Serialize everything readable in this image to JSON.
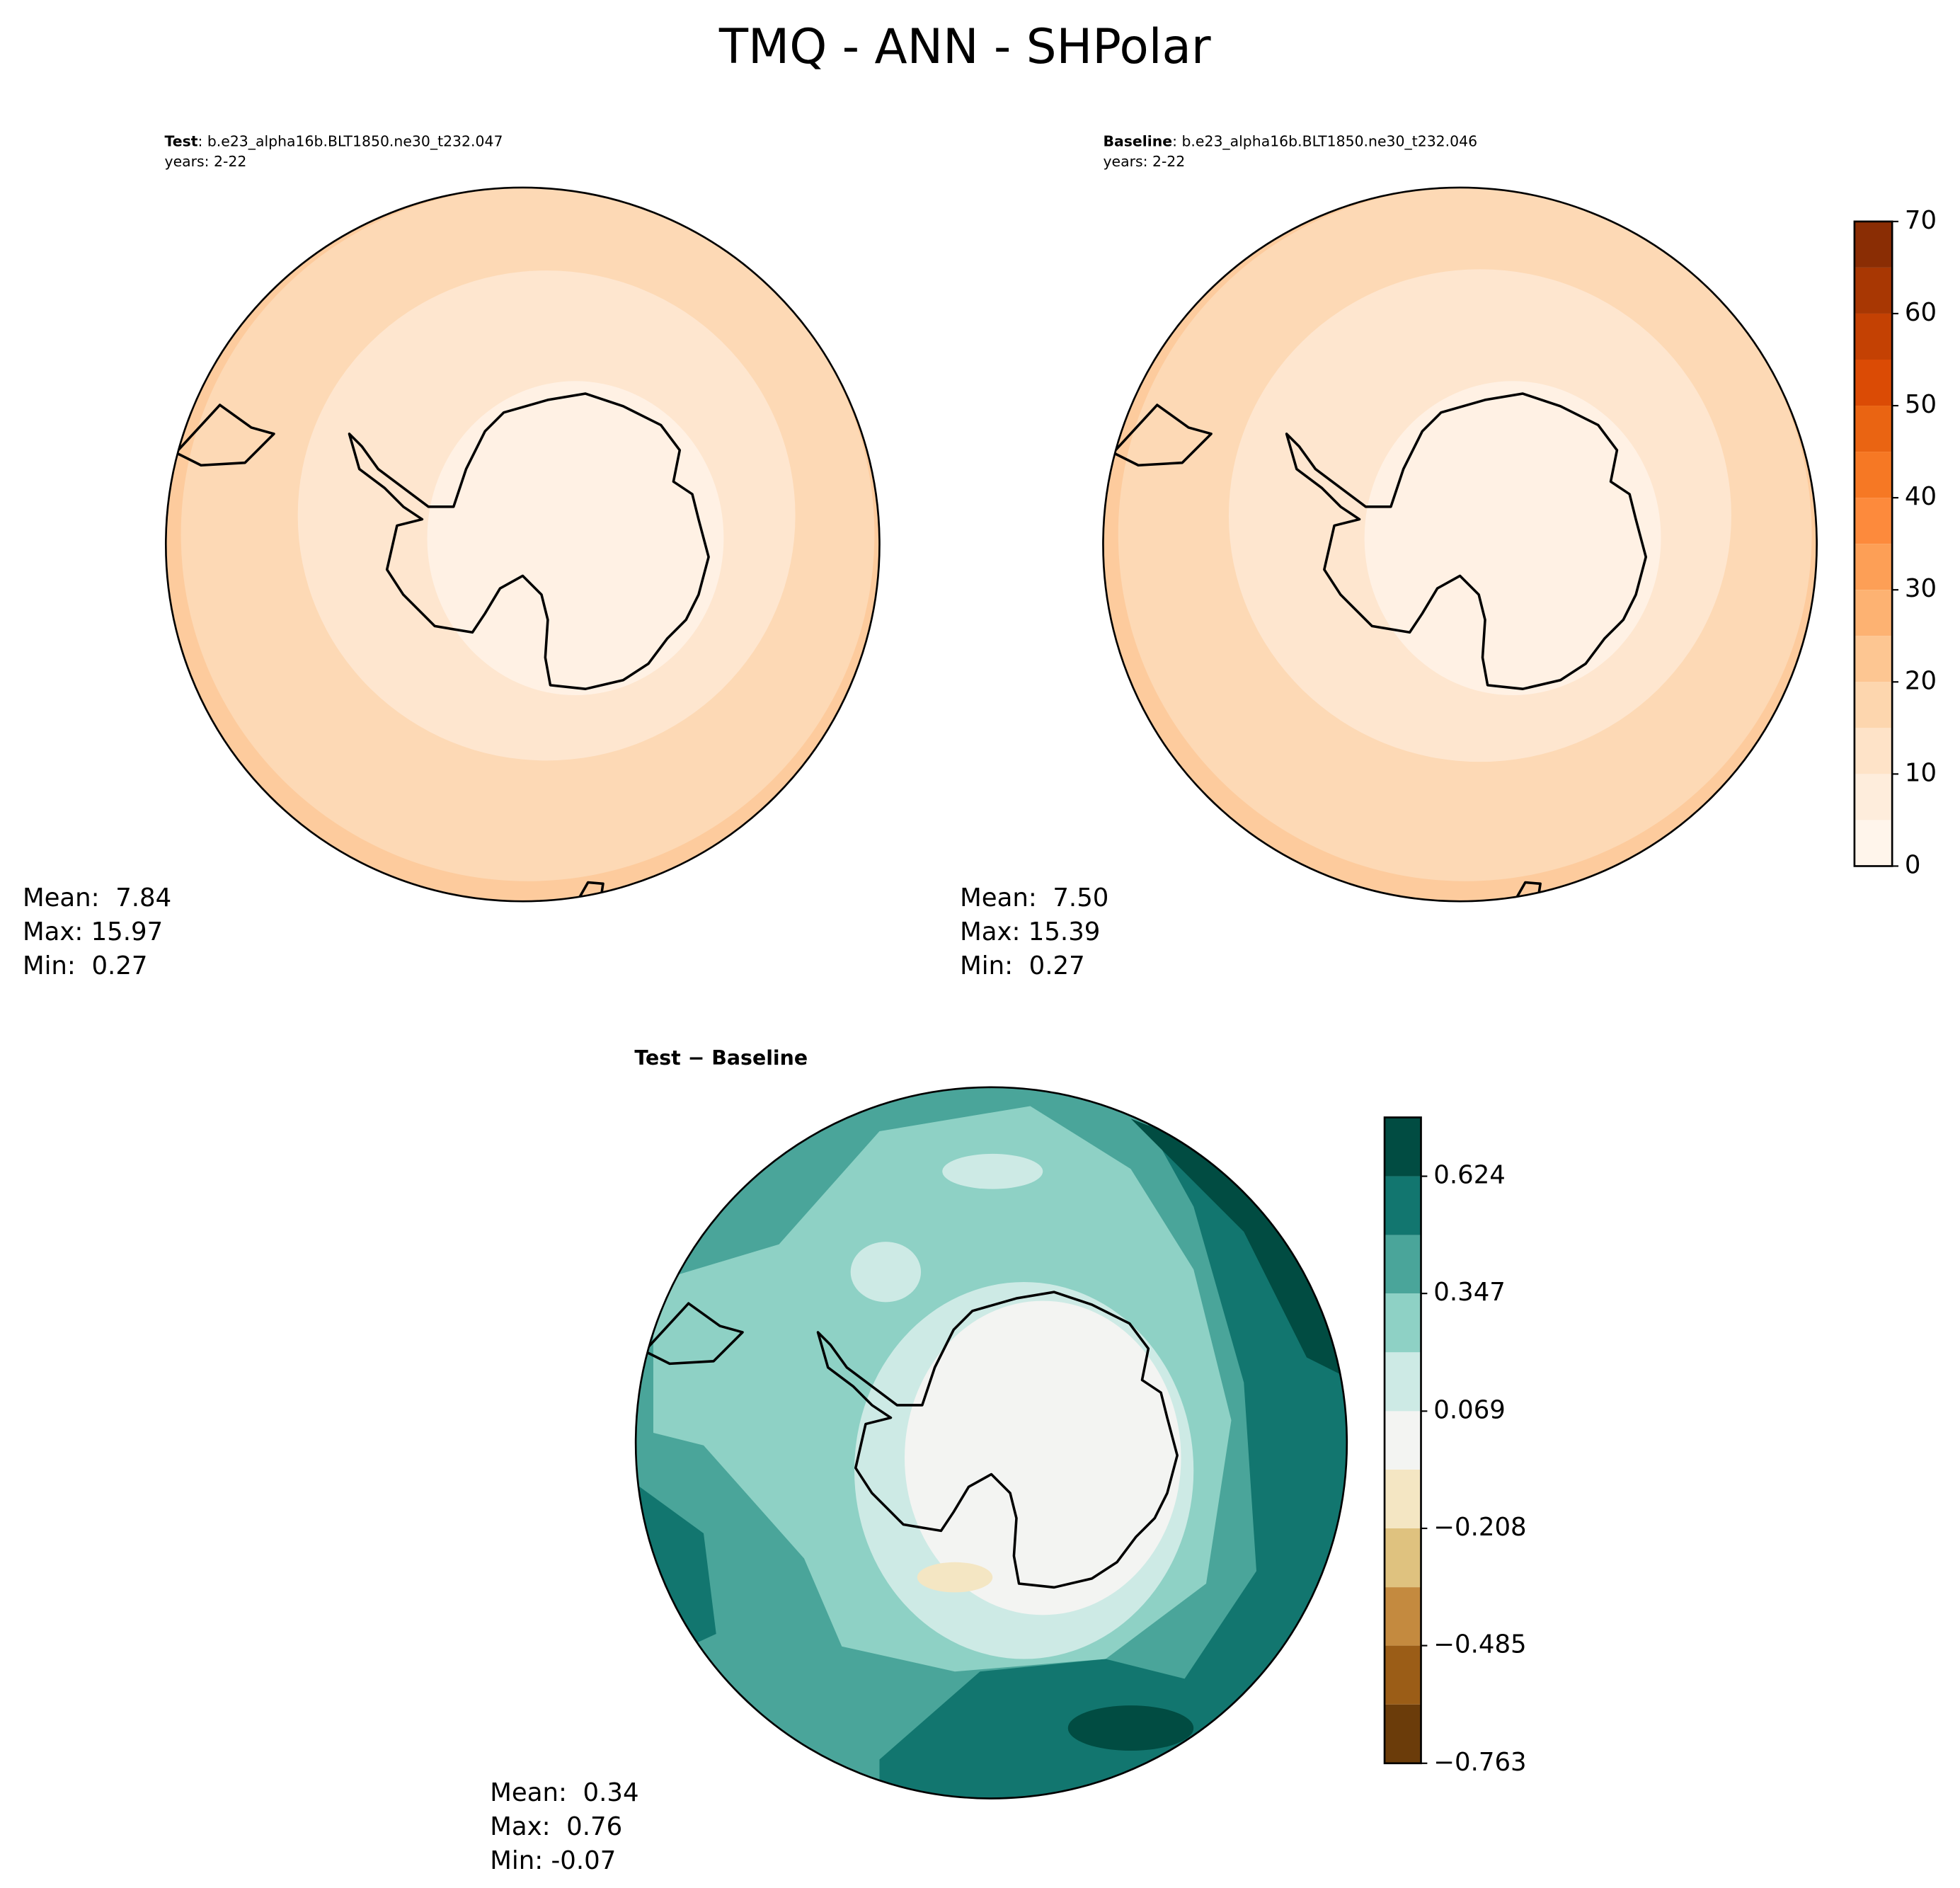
{
  "title": "TMQ - ANN - SHPolar",
  "panels": [
    {
      "label": "Test",
      "case": ": b.e23_alpha16b.BLT1850.ne30_t232.047",
      "years": "years: 2-22",
      "stats": [
        "Mean:  7.84",
        "Max: 15.97",
        "Min:  0.27"
      ]
    },
    {
      "label": "Baseline",
      "case": ": b.e23_alpha16b.BLT1850.ne30_t232.046",
      "years": "years: 2-22",
      "stats": [
        "Mean:  7.50",
        "Max: 15.39",
        "Min:  0.27"
      ]
    }
  ],
  "diff": {
    "title": "Test − Baseline",
    "stats": [
      "Mean:  0.34",
      "Max:  0.76",
      "Min: -0.07"
    ]
  },
  "colorbars": [
    {
      "levels": [
        0,
        5,
        10,
        15,
        20,
        25,
        30,
        35,
        40,
        45,
        50,
        55,
        60,
        65,
        70
      ],
      "colors": [
        "#fff5eb",
        "#feeddc",
        "#fee3c8",
        "#fdd6ae",
        "#fdc692",
        "#fdb272",
        "#fd9f56",
        "#fd8a3c",
        "#f67824",
        "#ea6412",
        "#db4b05",
        "#c44103",
        "#a83703",
        "#8a2d04"
      ],
      "ticks": [
        0,
        10,
        20,
        30,
        40,
        50,
        60,
        70
      ]
    },
    {
      "levels": [
        -0.763,
        -0.624,
        -0.485,
        -0.347,
        -0.208,
        -0.069,
        0.069,
        0.208,
        0.347,
        0.485,
        0.624,
        0.763
      ],
      "colors": [
        "#6b3c0a",
        "#9b5d17",
        "#c48a3f",
        "#dfc27f",
        "#f4e6c3",
        "#f3f4f2",
        "#cdeae5",
        "#8ed1c5",
        "#4aa59a",
        "#12766f",
        "#014c42"
      ],
      "ticks": [
        {
          "value": -0.763,
          "label": "−0.763"
        },
        {
          "value": -0.485,
          "label": "−0.485"
        },
        {
          "value": -0.208,
          "label": "−0.208"
        },
        {
          "value": 0.069,
          "label": "0.069"
        },
        {
          "value": 0.347,
          "label": "0.347"
        },
        {
          "value": 0.624,
          "label": "0.624"
        }
      ]
    }
  ]
}
